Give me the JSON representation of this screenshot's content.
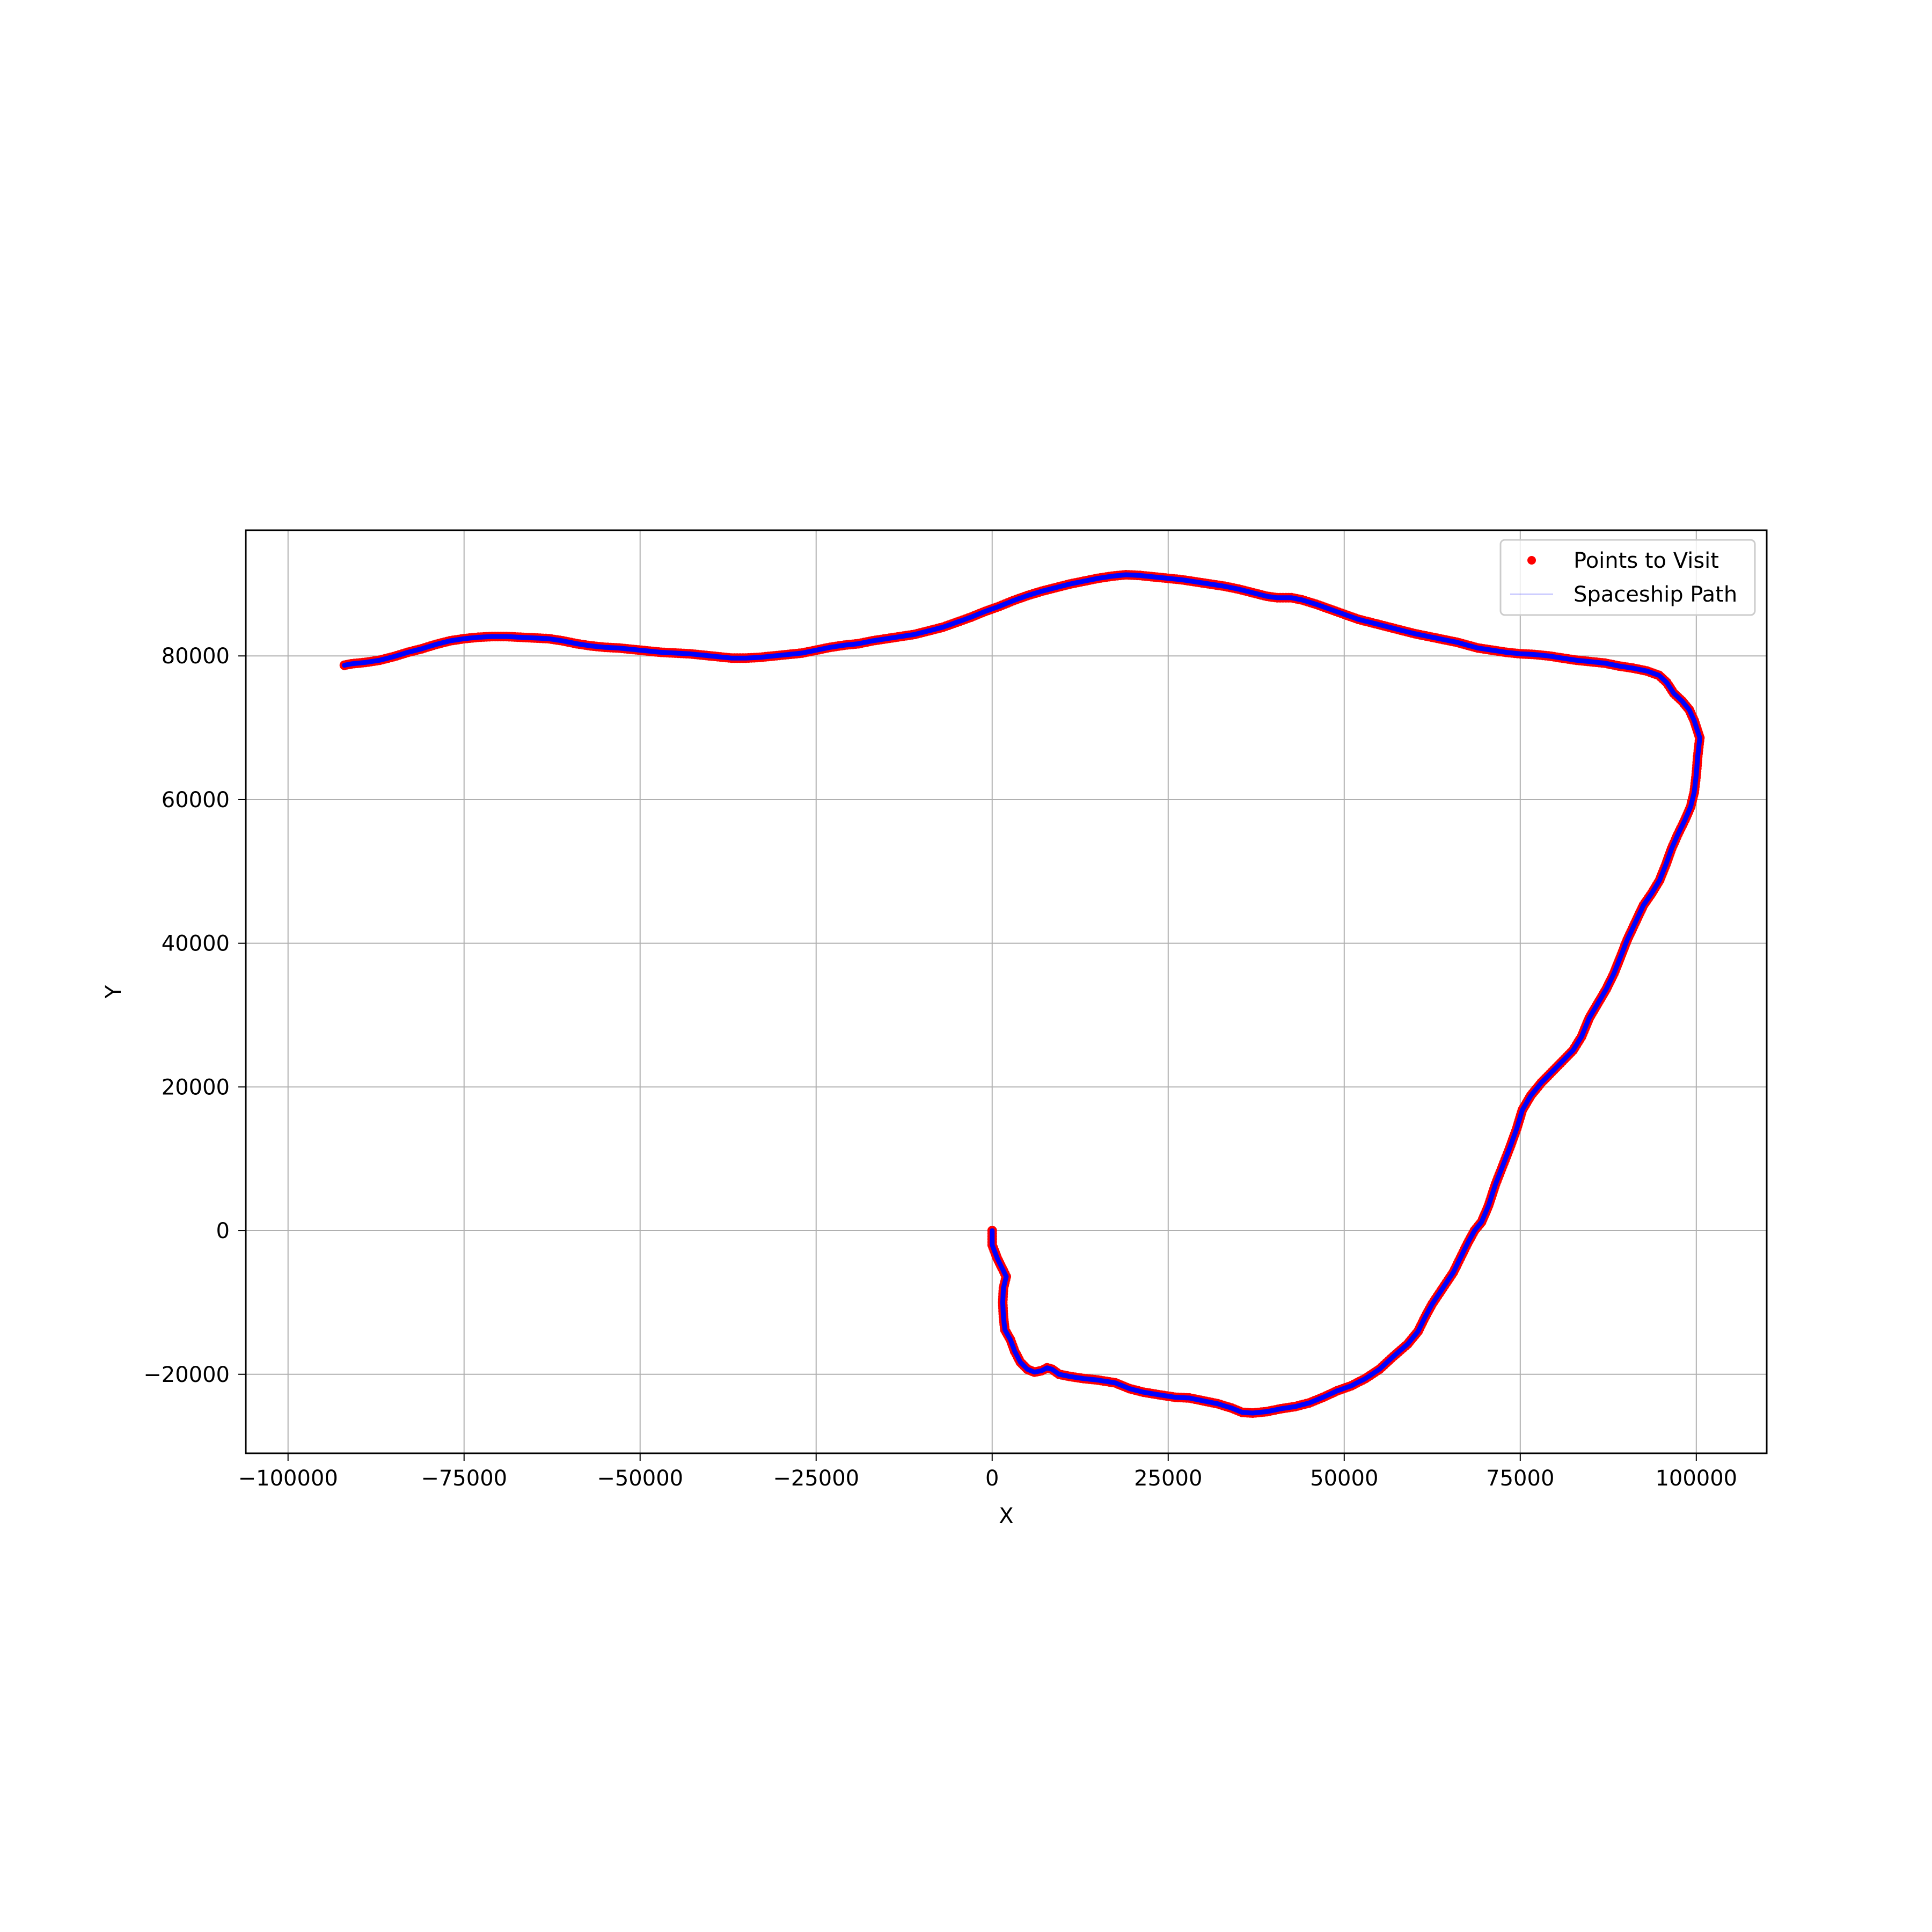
{
  "chart_data": {
    "type": "scatter",
    "title": "",
    "xlabel": "X",
    "ylabel": "Y",
    "xlim": [
      -106000,
      110000
    ],
    "ylim": [
      -31000,
      97500
    ],
    "xticks": [
      -100000,
      -75000,
      -50000,
      -25000,
      0,
      25000,
      50000,
      75000,
      100000
    ],
    "xtick_labels": [
      "−100000",
      "−75000",
      "−50000",
      "−25000",
      "0",
      "25000",
      "50000",
      "75000",
      "100000"
    ],
    "yticks": [
      -20000,
      0,
      20000,
      40000,
      60000,
      80000
    ],
    "ytick_labels": [
      "−20000",
      "0",
      "20000",
      "40000",
      "60000",
      "80000"
    ],
    "grid": true,
    "legend_position": "top-right",
    "series": [
      {
        "name": "Points to Visit",
        "kind": "points",
        "color": "#ff0000"
      },
      {
        "name": "Spaceship Path",
        "kind": "line",
        "color": "#0000ff"
      }
    ],
    "path": [
      [
        0,
        0
      ],
      [
        0,
        -2000
      ],
      [
        700,
        -3800
      ],
      [
        1400,
        -5200
      ],
      [
        2000,
        -6400
      ],
      [
        1600,
        -8000
      ],
      [
        1500,
        -10000
      ],
      [
        1600,
        -12000
      ],
      [
        1800,
        -13800
      ],
      [
        2600,
        -15200
      ],
      [
        3200,
        -16800
      ],
      [
        4000,
        -18300
      ],
      [
        5000,
        -19300
      ],
      [
        6000,
        -19700
      ],
      [
        7000,
        -19500
      ],
      [
        7800,
        -19100
      ],
      [
        8500,
        -19300
      ],
      [
        9500,
        -20000
      ],
      [
        11000,
        -20300
      ],
      [
        13000,
        -20600
      ],
      [
        15000,
        -20800
      ],
      [
        17500,
        -21200
      ],
      [
        19500,
        -22000
      ],
      [
        21500,
        -22500
      ],
      [
        24000,
        -22900
      ],
      [
        26000,
        -23200
      ],
      [
        28000,
        -23300
      ],
      [
        30000,
        -23700
      ],
      [
        32000,
        -24100
      ],
      [
        34000,
        -24700
      ],
      [
        35500,
        -25300
      ],
      [
        37000,
        -25400
      ],
      [
        39000,
        -25200
      ],
      [
        41000,
        -24800
      ],
      [
        43000,
        -24500
      ],
      [
        45000,
        -24000
      ],
      [
        47000,
        -23200
      ],
      [
        49000,
        -22300
      ],
      [
        51000,
        -21600
      ],
      [
        53000,
        -20600
      ],
      [
        55000,
        -19300
      ],
      [
        57000,
        -17500
      ],
      [
        59000,
        -15800
      ],
      [
        60500,
        -14000
      ],
      [
        61500,
        -12000
      ],
      [
        62500,
        -10200
      ],
      [
        64000,
        -8000
      ],
      [
        65500,
        -5800
      ],
      [
        66500,
        -3800
      ],
      [
        67500,
        -1800
      ],
      [
        68500,
        0
      ],
      [
        69500,
        1200
      ],
      [
        70500,
        3500
      ],
      [
        71500,
        6500
      ],
      [
        72500,
        9000
      ],
      [
        73500,
        11500
      ],
      [
        74500,
        14200
      ],
      [
        75300,
        16800
      ],
      [
        76500,
        18800
      ],
      [
        78000,
        20600
      ],
      [
        79500,
        22100
      ],
      [
        81000,
        23600
      ],
      [
        82500,
        25100
      ],
      [
        83700,
        27000
      ],
      [
        84800,
        29600
      ],
      [
        86000,
        31600
      ],
      [
        87200,
        33600
      ],
      [
        88300,
        35800
      ],
      [
        89200,
        38000
      ],
      [
        90200,
        40500
      ],
      [
        91300,
        42800
      ],
      [
        92500,
        45300
      ],
      [
        93700,
        47000
      ],
      [
        94800,
        48800
      ],
      [
        95700,
        51000
      ],
      [
        96500,
        53200
      ],
      [
        97400,
        55200
      ],
      [
        98400,
        57200
      ],
      [
        99200,
        59000
      ],
      [
        99700,
        61000
      ],
      [
        100000,
        63500
      ],
      [
        100200,
        66000
      ],
      [
        100500,
        68600
      ],
      [
        100200,
        69500
      ],
      [
        99700,
        71000
      ],
      [
        99000,
        72500
      ],
      [
        98000,
        73700
      ],
      [
        96800,
        74800
      ],
      [
        95800,
        76300
      ],
      [
        94700,
        77300
      ],
      [
        93000,
        77900
      ],
      [
        91000,
        78300
      ],
      [
        89000,
        78600
      ],
      [
        87000,
        79000
      ],
      [
        85000,
        79200
      ],
      [
        83000,
        79400
      ],
      [
        81000,
        79700
      ],
      [
        79000,
        80000
      ],
      [
        77000,
        80200
      ],
      [
        75000,
        80300
      ],
      [
        73000,
        80500
      ],
      [
        71000,
        80800
      ],
      [
        69000,
        81100
      ],
      [
        67500,
        81500
      ],
      [
        66000,
        81900
      ],
      [
        64000,
        82300
      ],
      [
        62000,
        82700
      ],
      [
        60000,
        83100
      ],
      [
        58000,
        83600
      ],
      [
        56000,
        84100
      ],
      [
        54000,
        84600
      ],
      [
        52000,
        85100
      ],
      [
        50000,
        85800
      ],
      [
        48000,
        86500
      ],
      [
        46000,
        87200
      ],
      [
        44000,
        87800
      ],
      [
        42500,
        88100
      ],
      [
        40500,
        88100
      ],
      [
        39000,
        88300
      ],
      [
        37000,
        88800
      ],
      [
        35000,
        89300
      ],
      [
        33000,
        89700
      ],
      [
        31000,
        90000
      ],
      [
        29000,
        90300
      ],
      [
        27000,
        90600
      ],
      [
        25000,
        90800
      ],
      [
        23000,
        91000
      ],
      [
        21000,
        91200
      ],
      [
        19000,
        91300
      ],
      [
        17000,
        91100
      ],
      [
        15000,
        90800
      ],
      [
        13000,
        90400
      ],
      [
        11000,
        90000
      ],
      [
        9000,
        89500
      ],
      [
        7000,
        89000
      ],
      [
        5000,
        88400
      ],
      [
        3000,
        87700
      ],
      [
        1000,
        86900
      ],
      [
        -1000,
        86200
      ],
      [
        -3000,
        85400
      ],
      [
        -5000,
        84700
      ],
      [
        -7000,
        84000
      ],
      [
        -9000,
        83500
      ],
      [
        -11000,
        83000
      ],
      [
        -13000,
        82700
      ],
      [
        -15000,
        82400
      ],
      [
        -17000,
        82100
      ],
      [
        -19000,
        81700
      ],
      [
        -21000,
        81500
      ],
      [
        -23000,
        81200
      ],
      [
        -25000,
        80800
      ],
      [
        -27000,
        80400
      ],
      [
        -29000,
        80200
      ],
      [
        -31000,
        80000
      ],
      [
        -33000,
        79800
      ],
      [
        -35000,
        79700
      ],
      [
        -37000,
        79700
      ],
      [
        -39000,
        79900
      ],
      [
        -41000,
        80100
      ],
      [
        -43000,
        80300
      ],
      [
        -45000,
        80400
      ],
      [
        -47000,
        80500
      ],
      [
        -49000,
        80700
      ],
      [
        -51000,
        80900
      ],
      [
        -53000,
        81100
      ],
      [
        -55000,
        81200
      ],
      [
        -57000,
        81400
      ],
      [
        -59000,
        81700
      ],
      [
        -61000,
        82100
      ],
      [
        -63000,
        82400
      ],
      [
        -65000,
        82500
      ],
      [
        -67000,
        82600
      ],
      [
        -69000,
        82700
      ],
      [
        -71000,
        82700
      ],
      [
        -73000,
        82600
      ],
      [
        -75000,
        82400
      ],
      [
        -77000,
        82100
      ],
      [
        -79000,
        81600
      ],
      [
        -81000,
        81000
      ],
      [
        -83000,
        80500
      ],
      [
        -85000,
        79900
      ],
      [
        -87000,
        79400
      ],
      [
        -89000,
        79100
      ],
      [
        -91000,
        78900
      ],
      [
        -92000,
        78700
      ]
    ]
  }
}
